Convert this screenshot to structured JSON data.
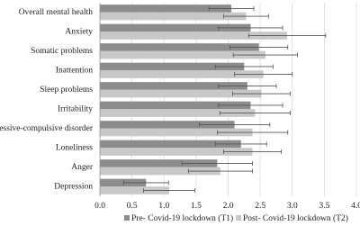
{
  "chart_data": {
    "type": "bar",
    "orientation": "horizontal",
    "categories": [
      "Overall mental health",
      "Anxiety",
      "Somatic problems",
      "Inattention",
      "Sleep problems",
      "Irritability",
      "Obsessive-compulsive disorder",
      "Loneliness",
      "Anger",
      "Depression"
    ],
    "series": [
      {
        "name": "Pre- Covid-19 lockdown (T1)",
        "color": "#8c8c8c",
        "values": [
          2.05,
          2.35,
          2.48,
          2.25,
          2.3,
          2.35,
          2.1,
          2.2,
          1.83,
          0.72
        ],
        "errors": [
          0.35,
          0.5,
          0.45,
          0.45,
          0.45,
          0.5,
          0.55,
          0.4,
          0.55,
          0.35
        ]
      },
      {
        "name": "Post- Covid-19 lockdown (T2)",
        "color": "#c8c8c8",
        "values": [
          2.28,
          2.92,
          2.58,
          2.55,
          2.52,
          2.42,
          2.38,
          2.38,
          1.88,
          1.08
        ],
        "errors": [
          0.35,
          0.6,
          0.5,
          0.45,
          0.45,
          0.55,
          0.55,
          0.45,
          0.5,
          0.4
        ]
      }
    ],
    "xlim": [
      0,
      4
    ],
    "xticks": [
      {
        "value": 0,
        "label": "0.0"
      },
      0.5,
      {
        "value": 1,
        "label": "1.0"
      },
      1.5,
      {
        "value": 2,
        "label": "2.0"
      },
      2.5,
      {
        "value": 3,
        "label": "3.0"
      },
      3.5,
      {
        "value": 4,
        "label": "4.0"
      }
    ],
    "grid": true,
    "legend": "bottom"
  }
}
